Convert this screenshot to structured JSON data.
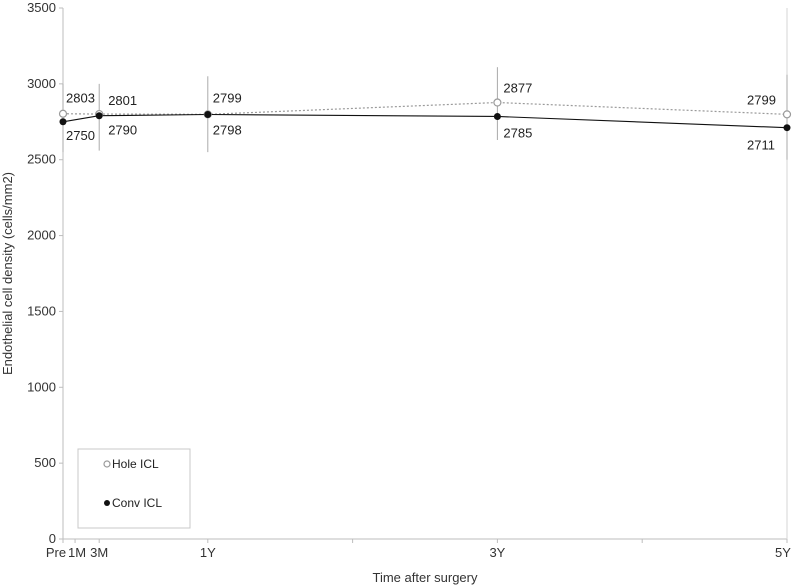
{
  "chart_data": {
    "type": "line",
    "x_categories": [
      "Pre",
      "1M",
      "3M",
      "1Y",
      "3Y",
      "5Y"
    ],
    "x_positions_months": [
      0,
      1,
      3,
      12,
      36,
      60
    ],
    "minor_tick_months": [
      24,
      48
    ],
    "xlabel": "Time after surgery",
    "ylabel": "Endothelial cell density (cells/mm2)",
    "ylim": [
      0,
      3500
    ],
    "yticks": [
      0,
      500,
      1000,
      1500,
      2000,
      2500,
      3000,
      3500
    ],
    "grid": false,
    "legend_position": "bottom-left",
    "series": [
      {
        "name": "Hole ICL",
        "marker": "open-circle",
        "line_style": "dotted",
        "color": "#9a9a9a",
        "points": [
          {
            "x": "Pre",
            "y": 2803,
            "label": "2803"
          },
          {
            "x": "3M",
            "y": 2801,
            "label": "2801"
          },
          {
            "x": "1Y",
            "y": 2799,
            "label": "2799"
          },
          {
            "x": "3Y",
            "y": 2877,
            "label": "2877"
          },
          {
            "x": "5Y",
            "y": 2799,
            "label": "2799"
          }
        ]
      },
      {
        "name": "Conv ICL",
        "marker": "filled-circle",
        "line_style": "solid",
        "color": "#111111",
        "points": [
          {
            "x": "Pre",
            "y": 2750,
            "label": "2750"
          },
          {
            "x": "3M",
            "y": 2790,
            "label": "2790"
          },
          {
            "x": "1Y",
            "y": 2798,
            "label": "2798"
          },
          {
            "x": "3Y",
            "y": 2785,
            "label": "2785"
          },
          {
            "x": "5Y",
            "y": 2711,
            "label": "2711"
          }
        ]
      }
    ],
    "error_bars": [
      {
        "x": "Pre",
        "low": 2550,
        "high": 3000
      },
      {
        "x": "3M",
        "low": 2560,
        "high": 3000
      },
      {
        "x": "1Y",
        "low": 2550,
        "high": 3050
      },
      {
        "x": "3Y",
        "low": 2630,
        "high": 3110
      },
      {
        "x": "5Y",
        "low": 2500,
        "high": 3060
      }
    ]
  }
}
